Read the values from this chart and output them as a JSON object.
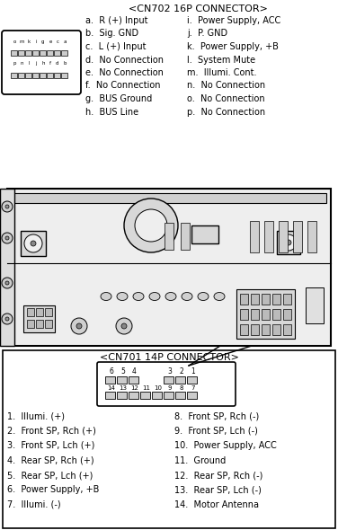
{
  "bg_color": "#ffffff",
  "title1": "<CN702 16P CONNECTOR>",
  "cn702_left": [
    "a.  R (+) Input",
    "b.  Sig. GND",
    "c.  L (+) Input",
    "d.  No Connection",
    "e.  No Connection",
    "f.  No Connection",
    "g.  BUS Ground",
    "h.  BUS Line"
  ],
  "cn702_right": [
    "i.  Power Supply, ACC",
    "j.  P. GND",
    "k.  Power Supply, +B",
    "l.  System Mute",
    "m.  Illumi. Cont.",
    "n.  No Connection",
    "o.  No Connection",
    "p.  No Connection"
  ],
  "cn702_row1_labels": [
    "o",
    "m",
    "k",
    "i",
    "g",
    "e",
    "c",
    "a"
  ],
  "cn702_row2_labels": [
    "p",
    "n",
    "l",
    "j",
    "h",
    "f",
    "d",
    "b"
  ],
  "title2": "<CN701 14P CONNECTOR>",
  "cn701_top_labels": [
    "6",
    "5",
    "4",
    "",
    "",
    "3",
    "2",
    "1"
  ],
  "cn701_bot_labels": [
    "14",
    "13",
    "12",
    "11",
    "10",
    "9",
    "8",
    "7"
  ],
  "cn701_left": [
    "1.  Illumi. (+)",
    "2.  Front SP, Rch (+)",
    "3.  Front SP, Lch (+)",
    "4.  Rear SP, Rch (+)",
    "5.  Rear SP, Lch (+)",
    "6.  Power Supply, +B",
    "7.  Illumi. (-)"
  ],
  "cn701_right": [
    "8.  Front SP, Rch (-)",
    "9.  Front SP, Lch (-)",
    "10.  Power Supply, ACC",
    "11.  Ground",
    "12.  Rear SP, Rch (-)",
    "13.  Rear SP, Lch (-)",
    "14.  Motor Antenna"
  ]
}
